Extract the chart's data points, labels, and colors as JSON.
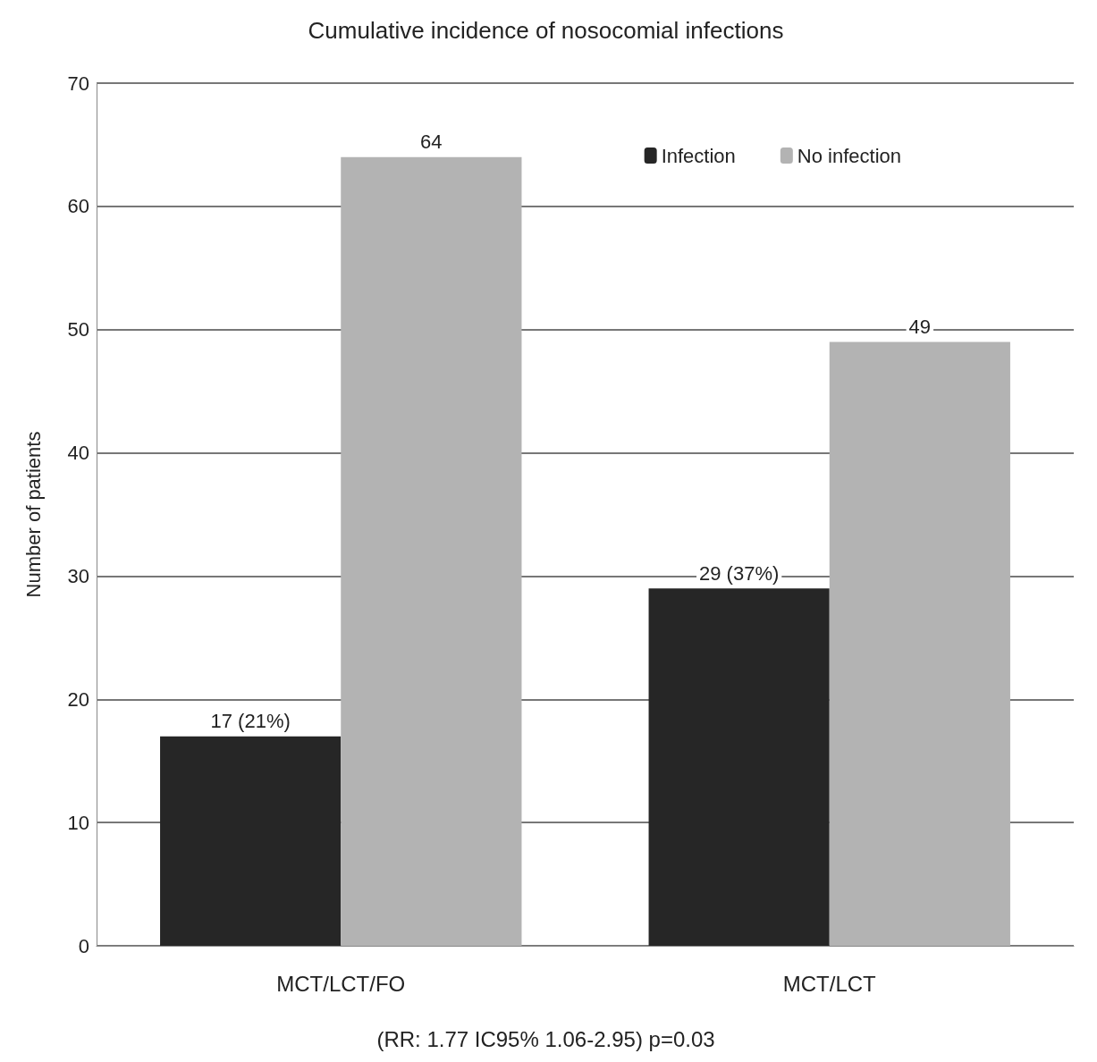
{
  "chart_data": {
    "type": "bar",
    "title": "Cumulative incidence of nosocomial infections",
    "ylabel": "Number of patients",
    "categories": [
      "MCT/LCT/FO",
      "MCT/LCT"
    ],
    "series": [
      {
        "name": "Infection",
        "color": "#262626",
        "values": [
          17,
          29
        ],
        "value_labels": [
          "17 (21%)",
          "29 (37%)"
        ]
      },
      {
        "name": "No infection",
        "color": "#b3b3b3",
        "values": [
          64,
          49
        ],
        "value_labels": [
          "64",
          "49"
        ]
      }
    ],
    "ylim": [
      0,
      70
    ],
    "yticks": [
      0,
      10,
      20,
      30,
      40,
      50,
      60,
      70
    ],
    "grid": "y",
    "legend": "top right",
    "annotations": [
      "(RR: 1.77 IC95% 1.06-2.95) p=0.03"
    ]
  }
}
